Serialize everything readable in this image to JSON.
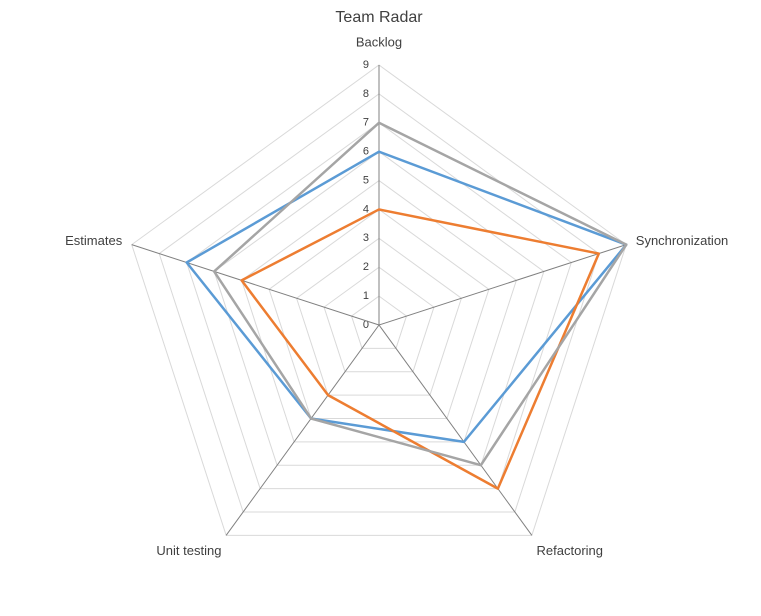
{
  "chart_data": {
    "type": "radar",
    "title": "Team Radar",
    "categories": [
      "Backlog",
      "Synchronization",
      "Refactoring",
      "Unit testing",
      "Estimates"
    ],
    "series": [
      {
        "color": "#5b9bd5",
        "values": [
          6,
          9,
          5,
          4,
          7
        ]
      },
      {
        "color": "#ed7d31",
        "values": [
          4,
          8,
          7,
          3,
          5
        ]
      },
      {
        "color": "#a5a5a5",
        "values": [
          7,
          9,
          6,
          4,
          6
        ]
      }
    ],
    "rlim": [
      0,
      9
    ],
    "rticks": [
      0,
      1,
      2,
      3,
      4,
      5,
      6,
      7,
      8,
      9
    ],
    "grid": true
  }
}
